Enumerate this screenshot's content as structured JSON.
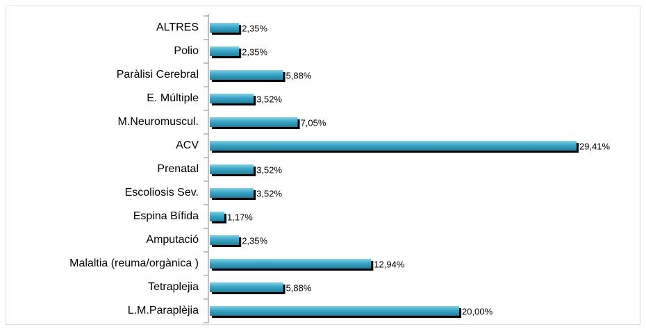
{
  "chart_data": {
    "type": "bar",
    "orientation": "horizontal",
    "categories": [
      "ALTRES",
      "Polio",
      "Paràlisi Cerebral",
      "E. Múltiple",
      "M.Neuromuscul.",
      "ACV",
      "Prenatal",
      "Escoliosis Sev.",
      "Espina Bífida",
      "Amputació",
      "Malaltia (reuma/orgànica )",
      "Tetraplejia",
      "L.M.Paraplèjia"
    ],
    "values": [
      2.35,
      2.35,
      5.88,
      3.52,
      7.05,
      29.41,
      3.52,
      3.52,
      1.17,
      2.35,
      12.94,
      5.88,
      20.0
    ],
    "value_labels": [
      "2,35%",
      "2,35%",
      "5,88%",
      "3,52%",
      "7,05%",
      "29,41%",
      "3,52%",
      "3,52%",
      "1,17%",
      "2,35%",
      "12,94%",
      "5,88%",
      "20,00%"
    ],
    "color": "#3aa6c6"
  }
}
